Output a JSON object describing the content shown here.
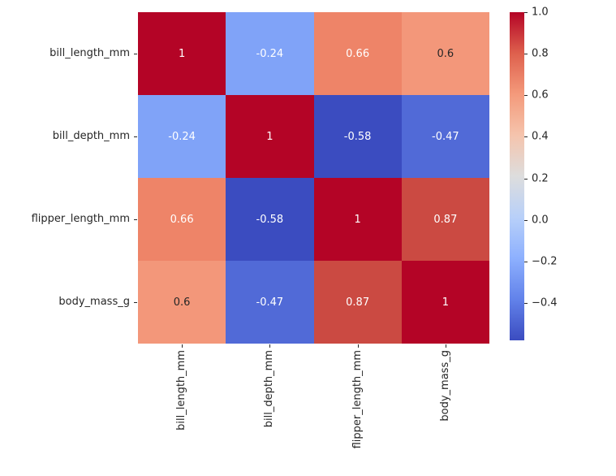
{
  "colors": {
    "background": "#ffffff",
    "axis_text": "#262626",
    "annotation_dark": "#262626",
    "annotation_light": "#ffffff"
  },
  "chart_data": {
    "type": "heatmap",
    "title": "",
    "colormap": "coolwarm",
    "categories": [
      "bill_length_mm",
      "bill_depth_mm",
      "flipper_length_mm",
      "body_mass_g"
    ],
    "matrix": [
      [
        1,
        -0.24,
        0.66,
        0.6
      ],
      [
        -0.24,
        1,
        -0.58,
        -0.47
      ],
      [
        0.66,
        -0.58,
        1,
        0.87
      ],
      [
        0.6,
        -0.47,
        0.87,
        1
      ]
    ],
    "annotations": [
      [
        "1",
        "-0.24",
        "0.66",
        "0.6"
      ],
      [
        "-0.24",
        "1",
        "-0.58",
        "-0.47"
      ],
      [
        "0.66",
        "-0.58",
        "1",
        "0.87"
      ],
      [
        "0.6",
        "-0.47",
        "0.87",
        "1"
      ]
    ],
    "cell_colors": [
      [
        "#b40426",
        "#80a3f8",
        "#ee8468",
        "#f3977a"
      ],
      [
        "#80a3f8",
        "#b40426",
        "#3b4cc0",
        "#516ad7"
      ],
      [
        "#ee8468",
        "#3b4cc0",
        "#b40426",
        "#cb4a42"
      ],
      [
        "#f3977a",
        "#516ad7",
        "#cb4a42",
        "#b40426"
      ]
    ],
    "text_colors": [
      [
        "light",
        "light",
        "light",
        "dark"
      ],
      [
        "light",
        "light",
        "light",
        "light"
      ],
      [
        "light",
        "light",
        "light",
        "light"
      ],
      [
        "dark",
        "light",
        "light",
        "light"
      ]
    ],
    "vmin": -0.58,
    "vmax": 1.0,
    "grid": false,
    "colorbar": {
      "position": "right",
      "tick_labels": [
        "1.0",
        "0.8",
        "0.6",
        "0.4",
        "0.2",
        "0.0",
        "−0.2",
        "−0.4"
      ],
      "tick_values": [
        1.0,
        0.8,
        0.6,
        0.4,
        0.2,
        0.0,
        -0.2,
        -0.4
      ],
      "gradient_stops": [
        {
          "pos": 0,
          "color": "#b40426"
        },
        {
          "pos": 12.5,
          "color": "#de604d"
        },
        {
          "pos": 25,
          "color": "#f49a7b"
        },
        {
          "pos": 37.5,
          "color": "#f5c4ad"
        },
        {
          "pos": 50,
          "color": "#dddddd"
        },
        {
          "pos": 62.5,
          "color": "#b8d0f9"
        },
        {
          "pos": 75,
          "color": "#8db0fe"
        },
        {
          "pos": 87.5,
          "color": "#6282ea"
        },
        {
          "pos": 100,
          "color": "#3b4cc0"
        }
      ]
    }
  }
}
